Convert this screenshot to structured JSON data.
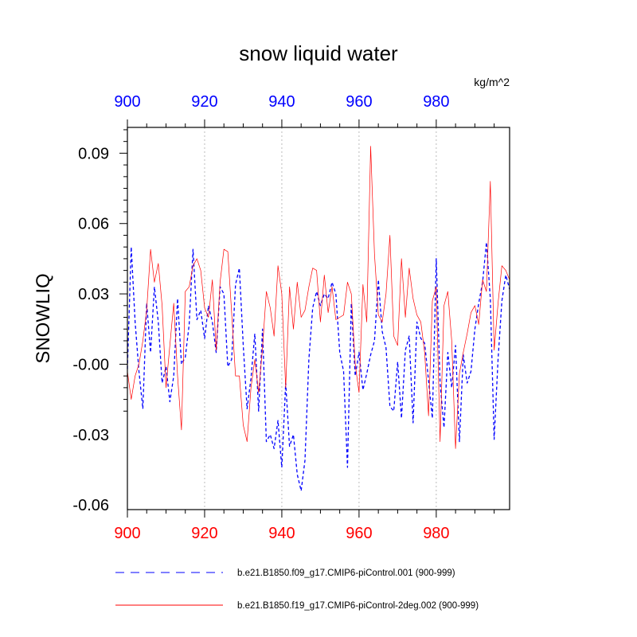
{
  "chart_data": {
    "type": "line",
    "title": "snow liquid water",
    "units": "kg/m^2",
    "ylabel": "SNOWLIQ",
    "xlim": [
      900,
      999
    ],
    "ylim": [
      -0.062,
      0.101
    ],
    "xticks": [
      900,
      920,
      940,
      960,
      980
    ],
    "xtick_labels": [
      "900",
      "920",
      "940",
      "960",
      "980"
    ],
    "yticks": [
      0.09,
      0.06,
      0.03,
      0.0,
      -0.03,
      -0.06
    ],
    "ytick_labels": [
      "0.09",
      "0.06",
      "0.03",
      "-0.00",
      "-0.03",
      "-0.06"
    ],
    "top_axis_color": "#0000ff",
    "bottom_axis_color": "#ff0000",
    "grid": "vertical dotted at x ticks",
    "legend_position": "bottom",
    "series": [
      {
        "name": "b.e21.B1850.f09_g17.CMIP6-piControl.001 (900-999)",
        "color": "#0000ff",
        "dash": "dashed",
        "x_start": 900,
        "values": [
          -0.002,
          0.05,
          0.018,
          -0.003,
          -0.019,
          0.026,
          0.005,
          0.033,
          0.018,
          -0.008,
          -0.001,
          -0.016,
          -0.005,
          0.028,
          0.0,
          0.003,
          0.017,
          0.049,
          0.019,
          0.023,
          0.011,
          0.025,
          0.018,
          0.005,
          0.033,
          0.03,
          -0.001,
          0.002,
          0.034,
          0.041,
          0.008,
          -0.019,
          -0.006,
          0.013,
          -0.02,
          0.015,
          -0.033,
          -0.03,
          -0.036,
          -0.024,
          -0.044,
          -0.008,
          -0.035,
          -0.03,
          -0.047,
          -0.054,
          -0.041,
          0.002,
          0.024,
          0.031,
          0.025,
          0.03,
          0.028,
          0.035,
          0.03,
          0.005,
          -0.003,
          -0.044,
          0.026,
          -0.005,
          0.005,
          -0.011,
          -0.004,
          0.004,
          0.01,
          0.036,
          0.014,
          0.007,
          -0.018,
          -0.02,
          0.001,
          -0.023,
          0.006,
          0.012,
          -0.025,
          0.018,
          0.011,
          0.009,
          -0.007,
          -0.023,
          0.045,
          -0.008,
          -0.027,
          0.005,
          -0.01,
          0.008,
          -0.033,
          0.004,
          -0.008,
          -0.003,
          0.015,
          0.026,
          0.035,
          0.052,
          0.028,
          -0.032,
          0.002,
          0.027,
          0.038,
          0.032
        ]
      },
      {
        "name": "b.e21.B1850.f19_g17.CMIP6-piControl-2deg.002 (900-999)",
        "color": "#ff0000",
        "dash": "solid",
        "x_start": 900,
        "values": [
          -0.003,
          -0.015,
          -0.005,
          0.0,
          0.01,
          0.023,
          0.049,
          0.035,
          0.043,
          0.025,
          -0.01,
          0.008,
          0.026,
          -0.005,
          -0.028,
          0.031,
          0.033,
          0.042,
          0.045,
          0.04,
          0.024,
          0.02,
          0.036,
          0.006,
          0.035,
          0.049,
          0.048,
          0.022,
          -0.005,
          -0.005,
          -0.026,
          -0.033,
          -0.01,
          0.002,
          -0.012,
          0.007,
          0.031,
          0.024,
          0.012,
          0.042,
          0.03,
          -0.01,
          0.033,
          0.015,
          0.035,
          0.02,
          0.023,
          0.033,
          0.041,
          0.04,
          0.018,
          0.038,
          0.022,
          0.033,
          0.019,
          0.02,
          0.021,
          0.035,
          0.03,
          0.0,
          -0.012,
          0.034,
          0.018,
          0.093,
          0.047,
          0.021,
          0.018,
          0.03,
          0.055,
          0.012,
          0.008,
          0.045,
          0.02,
          0.041,
          0.028,
          0.021,
          0.018,
          0.005,
          -0.022,
          0.027,
          0.033,
          -0.033,
          0.025,
          0.031,
          0.01,
          -0.036,
          -0.004,
          0.005,
          0.013,
          0.022,
          0.025,
          0.017,
          0.036,
          0.031,
          0.078,
          0.006,
          0.026,
          0.042,
          0.04,
          0.036
        ]
      }
    ]
  }
}
